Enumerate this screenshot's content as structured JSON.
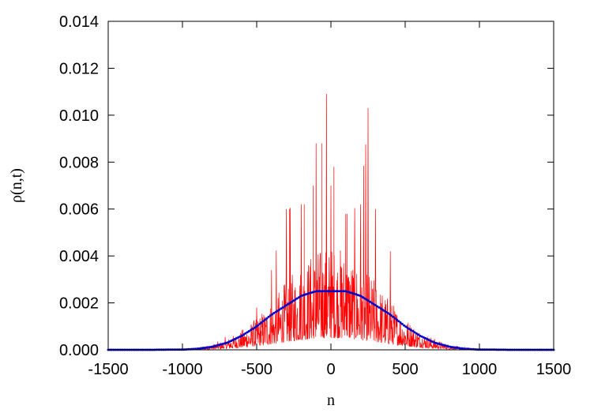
{
  "chart_data": {
    "type": "line",
    "title": "",
    "xlabel": "n",
    "ylabel": "ρ(n,t)",
    "xlim": [
      -1500,
      1500
    ],
    "ylim": [
      0,
      0.014
    ],
    "xticks": [
      -1500,
      -1000,
      -500,
      0,
      500,
      1000,
      1500
    ],
    "xtick_labels": [
      "-1500",
      "-1000",
      "-500",
      "0",
      "500",
      "1000",
      "1500"
    ],
    "yticks": [
      0,
      0.002,
      0.004,
      0.006,
      0.008,
      0.01,
      0.012,
      0.014
    ],
    "ytick_labels": [
      "0.000",
      "0.002",
      "0.004",
      "0.006",
      "0.008",
      "0.010",
      "0.012",
      "0.014"
    ],
    "grid": false,
    "legend": "none",
    "series": [
      {
        "style": "solid",
        "color": "#ff0000",
        "description_points": {
          "x": [
            -1500,
            -900,
            -800,
            -700,
            -600,
            -500,
            -400,
            -300,
            -200,
            -100,
            -30,
            0,
            100,
            200,
            250,
            300,
            400,
            500,
            600,
            700,
            800,
            900,
            1500
          ],
          "y": [
            0,
            5e-05,
            0.0002,
            0.0006,
            0.0012,
            0.0018,
            0.0034,
            0.006,
            0.0062,
            0.0088,
            0.0109,
            0.007,
            0.0058,
            0.0062,
            0.0103,
            0.006,
            0.0042,
            0.0022,
            0.0012,
            0.0006,
            0.0002,
            5e-05,
            0
          ]
        }
      },
      {
        "style": "dotted",
        "color": "#0000cc",
        "x": [
          -1500,
          -1200,
          -1000,
          -900,
          -800,
          -700,
          -600,
          -500,
          -400,
          -300,
          -200,
          -100,
          0,
          100,
          200,
          300,
          400,
          500,
          600,
          700,
          800,
          900,
          1000,
          1200,
          1500
        ],
        "y": [
          0,
          1e-06,
          1e-05,
          4e-05,
          0.00013,
          0.0003,
          0.0006,
          0.001,
          0.0015,
          0.0019,
          0.0023,
          0.0025,
          0.0025,
          0.0025,
          0.0023,
          0.0019,
          0.0015,
          0.001,
          0.0006,
          0.0003,
          0.00013,
          4e-05,
          1e-05,
          1e-06,
          0
        ]
      }
    ]
  },
  "colors": {
    "noisy_series": "#ff0000",
    "smooth_series": "#0000cc",
    "axes": "#000000"
  }
}
